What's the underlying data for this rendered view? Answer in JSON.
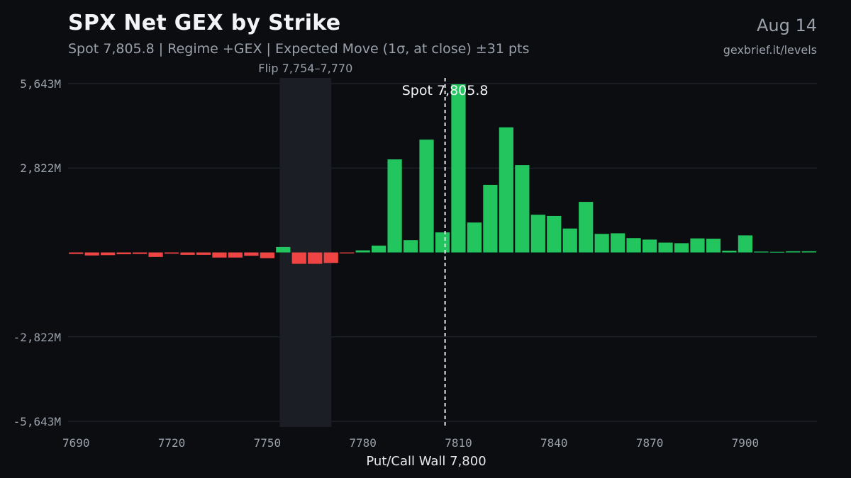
{
  "header": {
    "title": "SPX Net GEX by Strike",
    "subtitle": "Spot 7,805.8 | Regime +GEX | Expected Move (1σ, at close) ±31 pts",
    "date": "Aug 14",
    "source": "gexbrief.it/levels"
  },
  "colors": {
    "background": "#0b0d11",
    "positive": "#22c55e",
    "negative": "#ef4444",
    "grid": "#252a33",
    "flip_band": "#1b1f25",
    "spot_line": "#e6e8eb"
  },
  "chart_data": {
    "type": "bar",
    "title": "SPX Net GEX by Strike",
    "xlabel": "Put/Call Wall 7,800",
    "ylabel": "",
    "x_ticks": [
      7690,
      7720,
      7750,
      7780,
      7810,
      7840,
      7870,
      7900
    ],
    "y_ticks": [
      {
        "value": 5643,
        "label": "5,643M"
      },
      {
        "value": 2822,
        "label": "2,822M"
      },
      {
        "value": -2822,
        "label": "-2,822M"
      },
      {
        "value": -5643,
        "label": "-5,643M"
      }
    ],
    "xlim": [
      7687.5,
      7922.5
    ],
    "ylim": [
      -5643,
      5643
    ],
    "strike_step": 5,
    "strikes": [
      7690,
      7695,
      7700,
      7705,
      7710,
      7715,
      7720,
      7725,
      7730,
      7735,
      7740,
      7745,
      7750,
      7755,
      7760,
      7765,
      7770,
      7775,
      7780,
      7785,
      7790,
      7795,
      7800,
      7805,
      7810,
      7815,
      7820,
      7825,
      7830,
      7835,
      7840,
      7845,
      7850,
      7855,
      7860,
      7865,
      7870,
      7875,
      7880,
      7885,
      7890,
      7895,
      7900,
      7905,
      7910,
      7915,
      7920
    ],
    "values": [
      -50,
      -100,
      -90,
      -60,
      -50,
      -150,
      -40,
      -80,
      -80,
      -170,
      -170,
      -110,
      -190,
      180,
      -380,
      -380,
      -350,
      -30,
      70,
      230,
      3110,
      410,
      3770,
      670,
      5620,
      1000,
      2260,
      4180,
      2920,
      1260,
      1220,
      800,
      1690,
      620,
      640,
      480,
      430,
      330,
      310,
      470,
      460,
      60,
      570,
      30,
      20,
      40,
      40
    ],
    "series": [
      {
        "name": "Net GEX",
        "unit": "M"
      }
    ],
    "annotations": {
      "flip_label": "Flip 7,754–7,770",
      "flip_range": [
        7754,
        7770
      ],
      "spot_label": "Spot 7,805.8",
      "spot": 7805.8
    },
    "grid": true,
    "legend": "none"
  }
}
